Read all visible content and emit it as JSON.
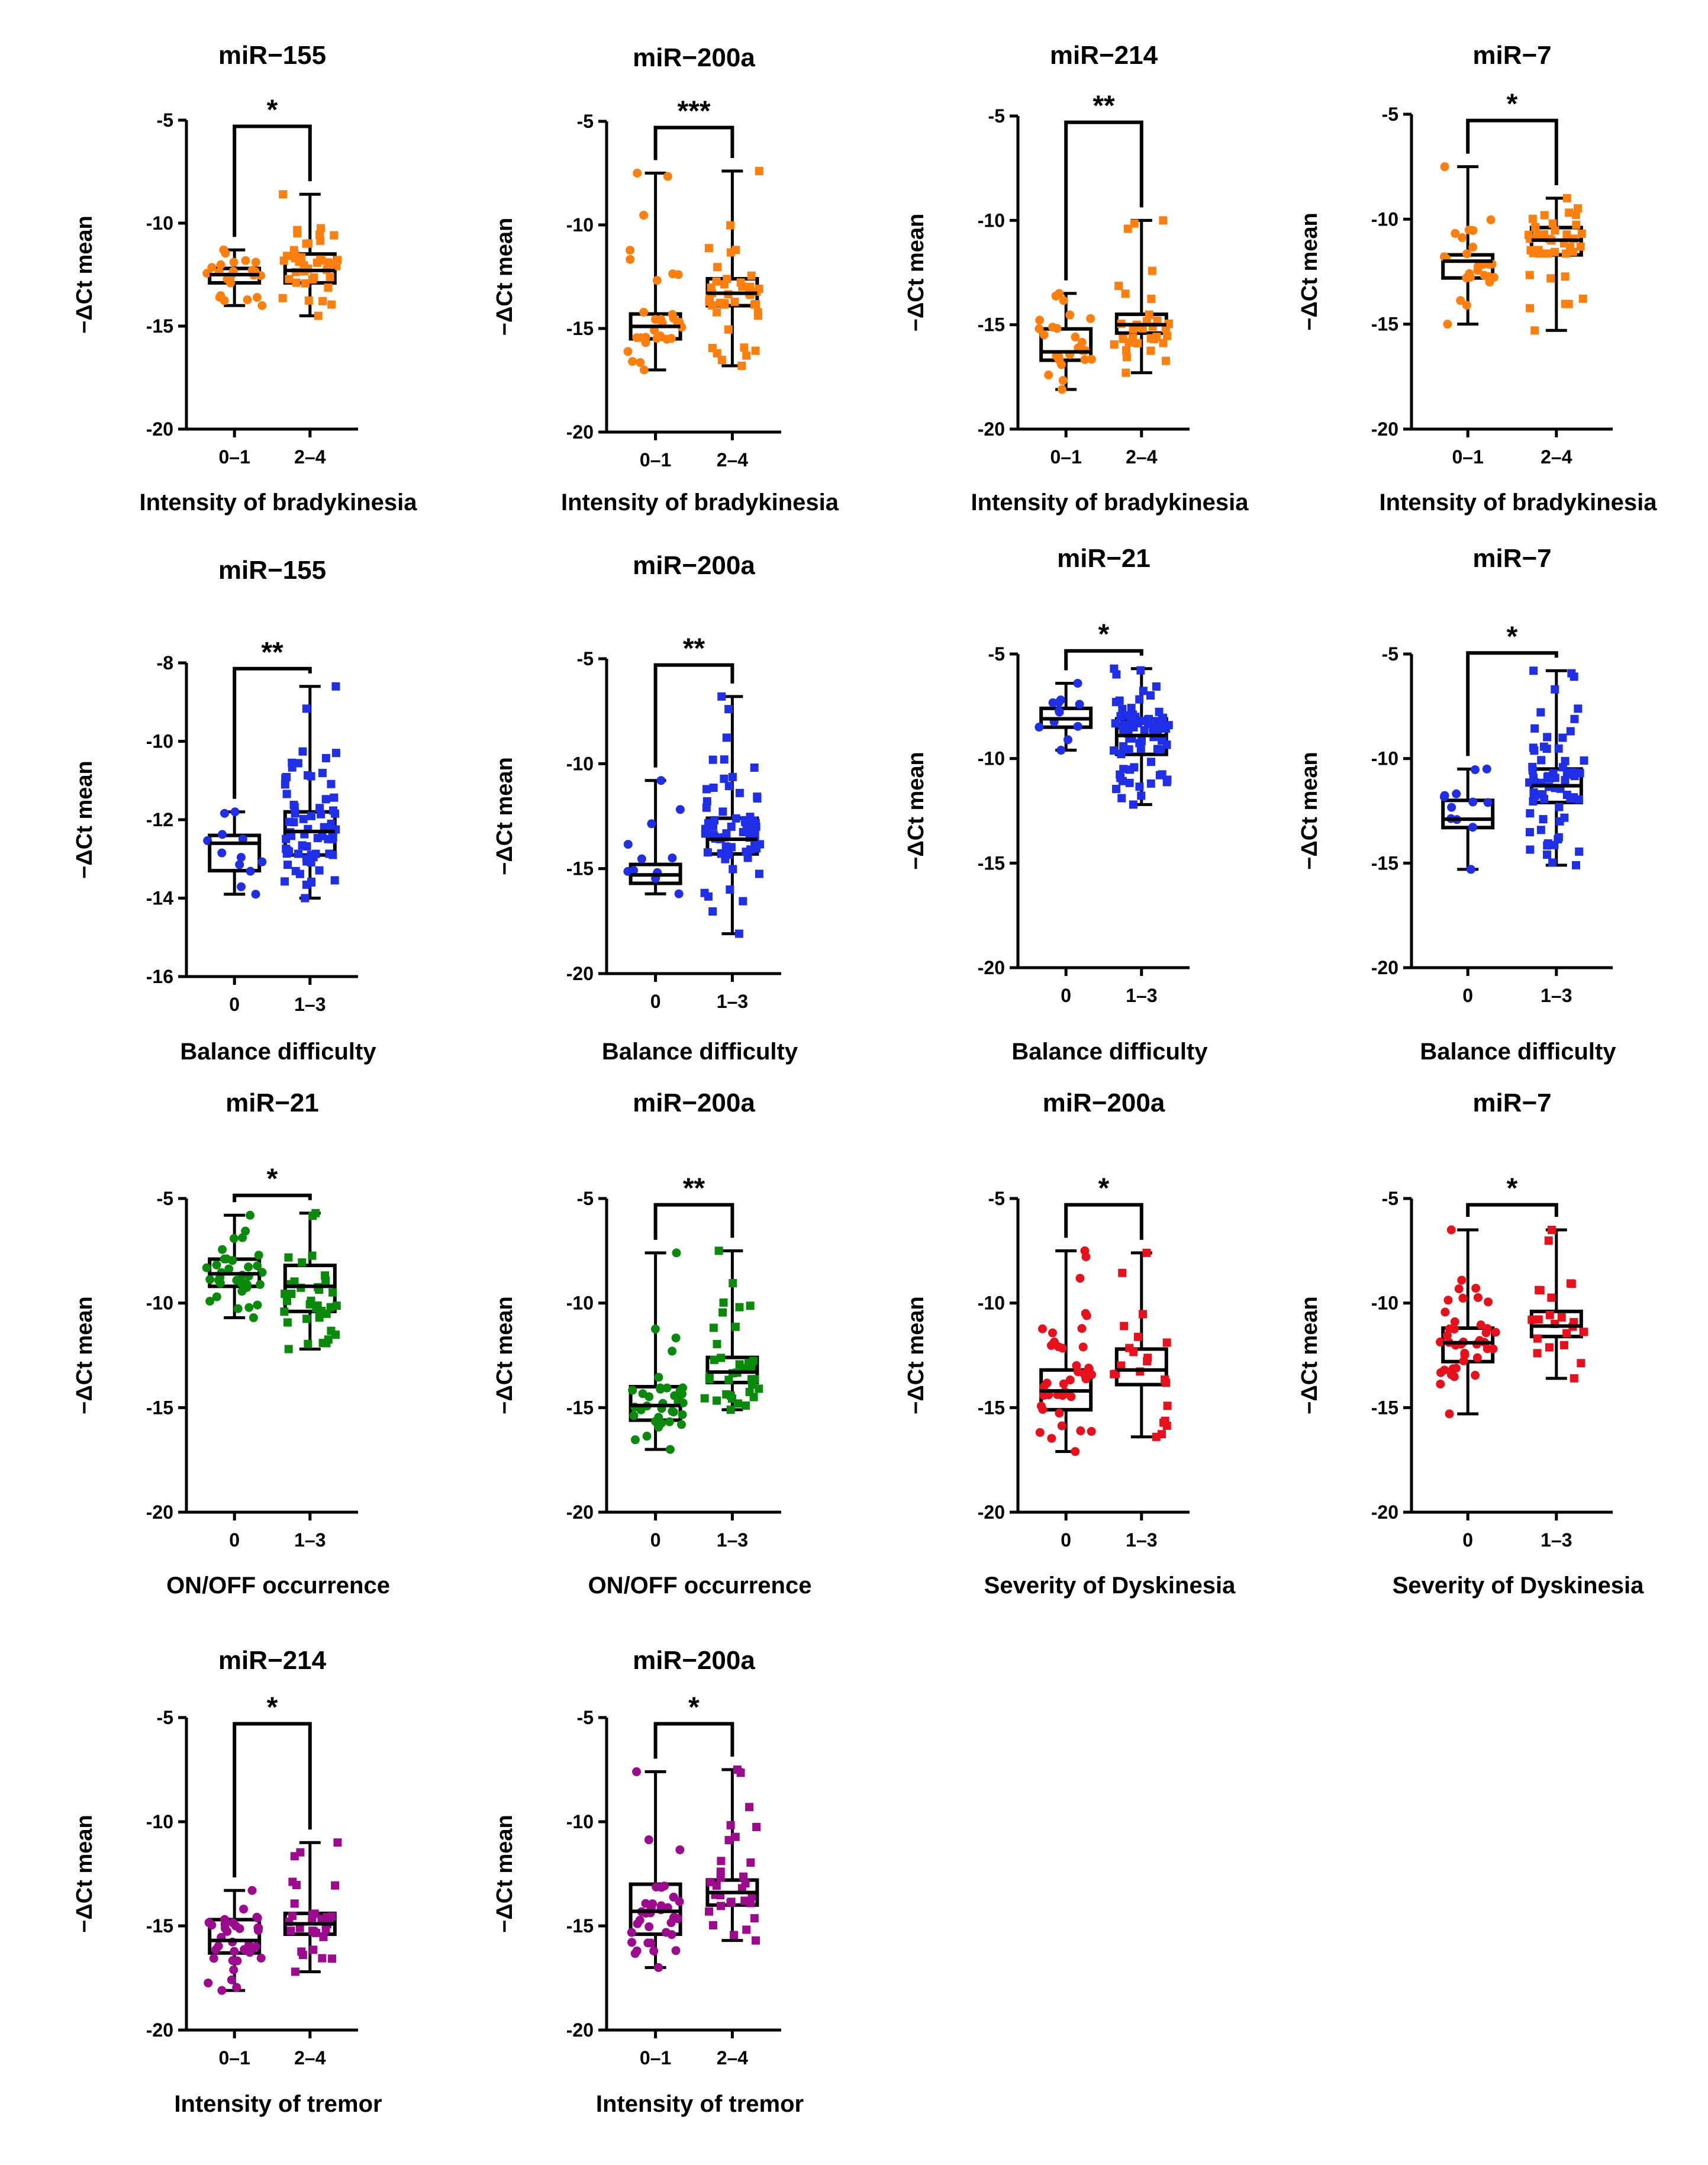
{
  "figure": {
    "y_axis_label": "−ΔCt mean"
  },
  "colors": {
    "orange": "#ff7f0e",
    "blue": "#1f2fe8",
    "green": "#0a8a0a",
    "red": "#e8101a",
    "purple": "#9c0a8e",
    "axis": "#000000"
  },
  "chart_data": [
    {
      "type": "box",
      "title": "miR−155",
      "xlabel": "Intensity of bradykinesia",
      "ylabel": "−ΔCt mean",
      "categories": [
        "0–1",
        "2–4"
      ],
      "significance": "*",
      "ylim": [
        -20,
        -5
      ],
      "yticks": [
        -5,
        -10,
        -15,
        -20
      ],
      "color": "orange",
      "n": [
        25,
        40
      ],
      "boxes": [
        {
          "min": -14.0,
          "q1": -12.9,
          "median": -12.5,
          "q3": -12.2,
          "max": -11.3
        },
        {
          "min": -14.5,
          "q1": -12.9,
          "median": -12.3,
          "q3": -11.5,
          "max": -8.6
        }
      ]
    },
    {
      "type": "box",
      "title": "miR−200a",
      "xlabel": "Intensity of bradykinesia",
      "ylabel": "−ΔCt mean",
      "categories": [
        "0–1",
        "2–4"
      ],
      "significance": "***",
      "ylim": [
        -20,
        -5
      ],
      "yticks": [
        -5,
        -10,
        -15,
        -20
      ],
      "color": "orange",
      "n": [
        30,
        40
      ],
      "boxes": [
        {
          "min": -17.0,
          "q1": -15.5,
          "median": -14.9,
          "q3": -14.3,
          "max": -7.5
        },
        {
          "min": -16.8,
          "q1": -13.9,
          "median": -13.3,
          "q3": -12.6,
          "max": -7.4
        }
      ]
    },
    {
      "type": "box",
      "title": "miR−214",
      "xlabel": "Intensity of bradykinesia",
      "ylabel": "−ΔCt mean",
      "categories": [
        "0–1",
        "2–4"
      ],
      "significance": "**",
      "ylim": [
        -20,
        -5
      ],
      "yticks": [
        -5,
        -10,
        -15,
        -20
      ],
      "color": "orange",
      "n": [
        25,
        35
      ],
      "boxes": [
        {
          "min": -18.1,
          "q1": -16.7,
          "median": -16.3,
          "q3": -15.2,
          "max": -13.5
        },
        {
          "min": -17.3,
          "q1": -15.4,
          "median": -15.0,
          "q3": -14.5,
          "max": -10.0
        }
      ]
    },
    {
      "type": "box",
      "title": "miR−7",
      "xlabel": "Intensity of bradykinesia",
      "ylabel": "−ΔCt mean",
      "categories": [
        "0–1",
        "2–4"
      ],
      "significance": "*",
      "ylim": [
        -20,
        -5
      ],
      "yticks": [
        -5,
        -10,
        -15,
        -20
      ],
      "color": "orange",
      "n": [
        25,
        40
      ],
      "boxes": [
        {
          "min": -15.0,
          "q1": -12.8,
          "median": -12.0,
          "q3": -11.7,
          "max": -7.5
        },
        {
          "min": -15.3,
          "q1": -11.7,
          "median": -11.0,
          "q3": -10.4,
          "max": -9.0
        }
      ]
    },
    {
      "type": "box",
      "title": "miR−155",
      "xlabel": "Balance difficulty",
      "ylabel": "−ΔCt mean",
      "categories": [
        "0",
        "1–3"
      ],
      "significance": "**",
      "ylim": [
        -16,
        -8
      ],
      "yticks": [
        -8,
        -10,
        -12,
        -14,
        -16
      ],
      "color": "blue",
      "n": [
        12,
        70
      ],
      "boxes": [
        {
          "min": -13.9,
          "q1": -13.3,
          "median": -12.6,
          "q3": -12.4,
          "max": -11.8
        },
        {
          "min": -14.0,
          "q1": -12.9,
          "median": -12.3,
          "q3": -11.8,
          "max": -8.6
        }
      ]
    },
    {
      "type": "box",
      "title": "miR−200a",
      "xlabel": "Balance difficulty",
      "ylabel": "−ΔCt mean",
      "categories": [
        "0",
        "1–3"
      ],
      "significance": "**",
      "ylim": [
        -20,
        -5
      ],
      "yticks": [
        -5,
        -10,
        -15,
        -20
      ],
      "color": "blue",
      "n": [
        12,
        70
      ],
      "boxes": [
        {
          "min": -16.2,
          "q1": -15.7,
          "median": -15.3,
          "q3": -14.8,
          "max": -10.8
        },
        {
          "min": -18.1,
          "q1": -14.3,
          "median": -13.6,
          "q3": -12.6,
          "max": -6.8
        }
      ]
    },
    {
      "type": "box",
      "title": "miR−21",
      "xlabel": "Balance difficulty",
      "ylabel": "−ΔCt mean",
      "categories": [
        "0",
        "1–3"
      ],
      "significance": "*",
      "ylim": [
        -20,
        -5
      ],
      "yticks": [
        -5,
        -10,
        -15,
        -20
      ],
      "color": "blue",
      "n": [
        12,
        80
      ],
      "boxes": [
        {
          "min": -9.6,
          "q1": -8.5,
          "median": -8.1,
          "q3": -7.6,
          "max": -6.4
        },
        {
          "min": -12.2,
          "q1": -9.8,
          "median": -8.9,
          "q3": -8.1,
          "max": -5.7
        }
      ]
    },
    {
      "type": "box",
      "title": "miR−7",
      "xlabel": "Balance difficulty",
      "ylabel": "−ΔCt mean",
      "categories": [
        "0",
        "1–3"
      ],
      "significance": "*",
      "ylim": [
        -20,
        -5
      ],
      "yticks": [
        -5,
        -10,
        -15,
        -20
      ],
      "color": "blue",
      "n": [
        12,
        70
      ],
      "boxes": [
        {
          "min": -15.3,
          "q1": -13.3,
          "median": -12.9,
          "q3": -12.0,
          "max": -10.5
        },
        {
          "min": -15.1,
          "q1": -12.1,
          "median": -11.3,
          "q3": -10.5,
          "max": -5.8
        }
      ]
    },
    {
      "type": "box",
      "title": "miR−21",
      "xlabel": "ON/OFF occurrence",
      "ylabel": "−ΔCt mean",
      "categories": [
        "0",
        "1–3"
      ],
      "significance": "*",
      "ylim": [
        -20,
        -5
      ],
      "yticks": [
        -5,
        -10,
        -15,
        -20
      ],
      "color": "green",
      "n": [
        35,
        35
      ],
      "boxes": [
        {
          "min": -10.7,
          "q1": -9.2,
          "median": -8.6,
          "q3": -7.9,
          "max": -5.8
        },
        {
          "min": -12.2,
          "q1": -10.4,
          "median": -9.2,
          "q3": -8.2,
          "max": -5.7
        }
      ]
    },
    {
      "type": "box",
      "title": "miR−200a",
      "xlabel": "ON/OFF occurrence",
      "ylabel": "−ΔCt mean",
      "categories": [
        "0",
        "1–3"
      ],
      "significance": "**",
      "ylim": [
        -20,
        -5
      ],
      "yticks": [
        -5,
        -10,
        -15,
        -20
      ],
      "color": "green",
      "n": [
        35,
        35
      ],
      "boxes": [
        {
          "min": -17.0,
          "q1": -15.6,
          "median": -14.9,
          "q3": -14.0,
          "max": -7.6
        },
        {
          "min": -15.1,
          "q1": -13.8,
          "median": -13.3,
          "q3": -12.6,
          "max": -7.5
        }
      ]
    },
    {
      "type": "box",
      "title": "miR−200a",
      "xlabel": "Severity of Dyskinesia",
      "ylabel": "−ΔCt mean",
      "categories": [
        "0",
        "1–3"
      ],
      "significance": "*",
      "ylim": [
        -20,
        -5
      ],
      "yticks": [
        -5,
        -10,
        -15,
        -20
      ],
      "color": "red",
      "n": [
        40,
        22
      ],
      "boxes": [
        {
          "min": -17.1,
          "q1": -15.1,
          "median": -14.2,
          "q3": -13.2,
          "max": -7.5
        },
        {
          "min": -16.4,
          "q1": -13.9,
          "median": -13.2,
          "q3": -12.2,
          "max": -7.6
        }
      ]
    },
    {
      "type": "box",
      "title": "miR−7",
      "xlabel": "Severity of Dyskinesia",
      "ylabel": "−ΔCt mean",
      "categories": [
        "0",
        "1–3"
      ],
      "significance": "*",
      "ylim": [
        -20,
        -5
      ],
      "yticks": [
        -5,
        -10,
        -15,
        -20
      ],
      "color": "red",
      "n": [
        40,
        22
      ],
      "boxes": [
        {
          "min": -15.3,
          "q1": -12.8,
          "median": -11.9,
          "q3": -11.2,
          "max": -6.5
        },
        {
          "min": -13.6,
          "q1": -11.6,
          "median": -11.1,
          "q3": -10.4,
          "max": -6.5
        }
      ]
    },
    {
      "type": "box",
      "title": "miR−214",
      "xlabel": "Intensity of tremor",
      "ylabel": "−ΔCt mean",
      "categories": [
        "0–1",
        "2–4"
      ],
      "significance": "*",
      "ylim": [
        -20,
        -5
      ],
      "yticks": [
        -5,
        -10,
        -15,
        -20
      ],
      "color": "purple",
      "n": [
        35,
        30
      ],
      "boxes": [
        {
          "min": -18.1,
          "q1": -16.3,
          "median": -15.7,
          "q3": -14.7,
          "max": -13.3
        },
        {
          "min": -17.2,
          "q1": -15.4,
          "median": -14.9,
          "q3": -14.4,
          "max": -11.0
        }
      ]
    },
    {
      "type": "box",
      "title": "miR−200a",
      "xlabel": "Intensity of tremor",
      "ylabel": "−ΔCt mean",
      "categories": [
        "0–1",
        "2–4"
      ],
      "significance": "*",
      "ylim": [
        -20,
        -5
      ],
      "yticks": [
        -5,
        -10,
        -15,
        -20
      ],
      "color": "purple",
      "n": [
        35,
        30
      ],
      "boxes": [
        {
          "min": -17.0,
          "q1": -15.4,
          "median": -14.3,
          "q3": -13.0,
          "max": -7.6
        },
        {
          "min": -15.7,
          "q1": -14.0,
          "median": -13.4,
          "q3": -12.8,
          "max": -7.5
        }
      ]
    }
  ]
}
